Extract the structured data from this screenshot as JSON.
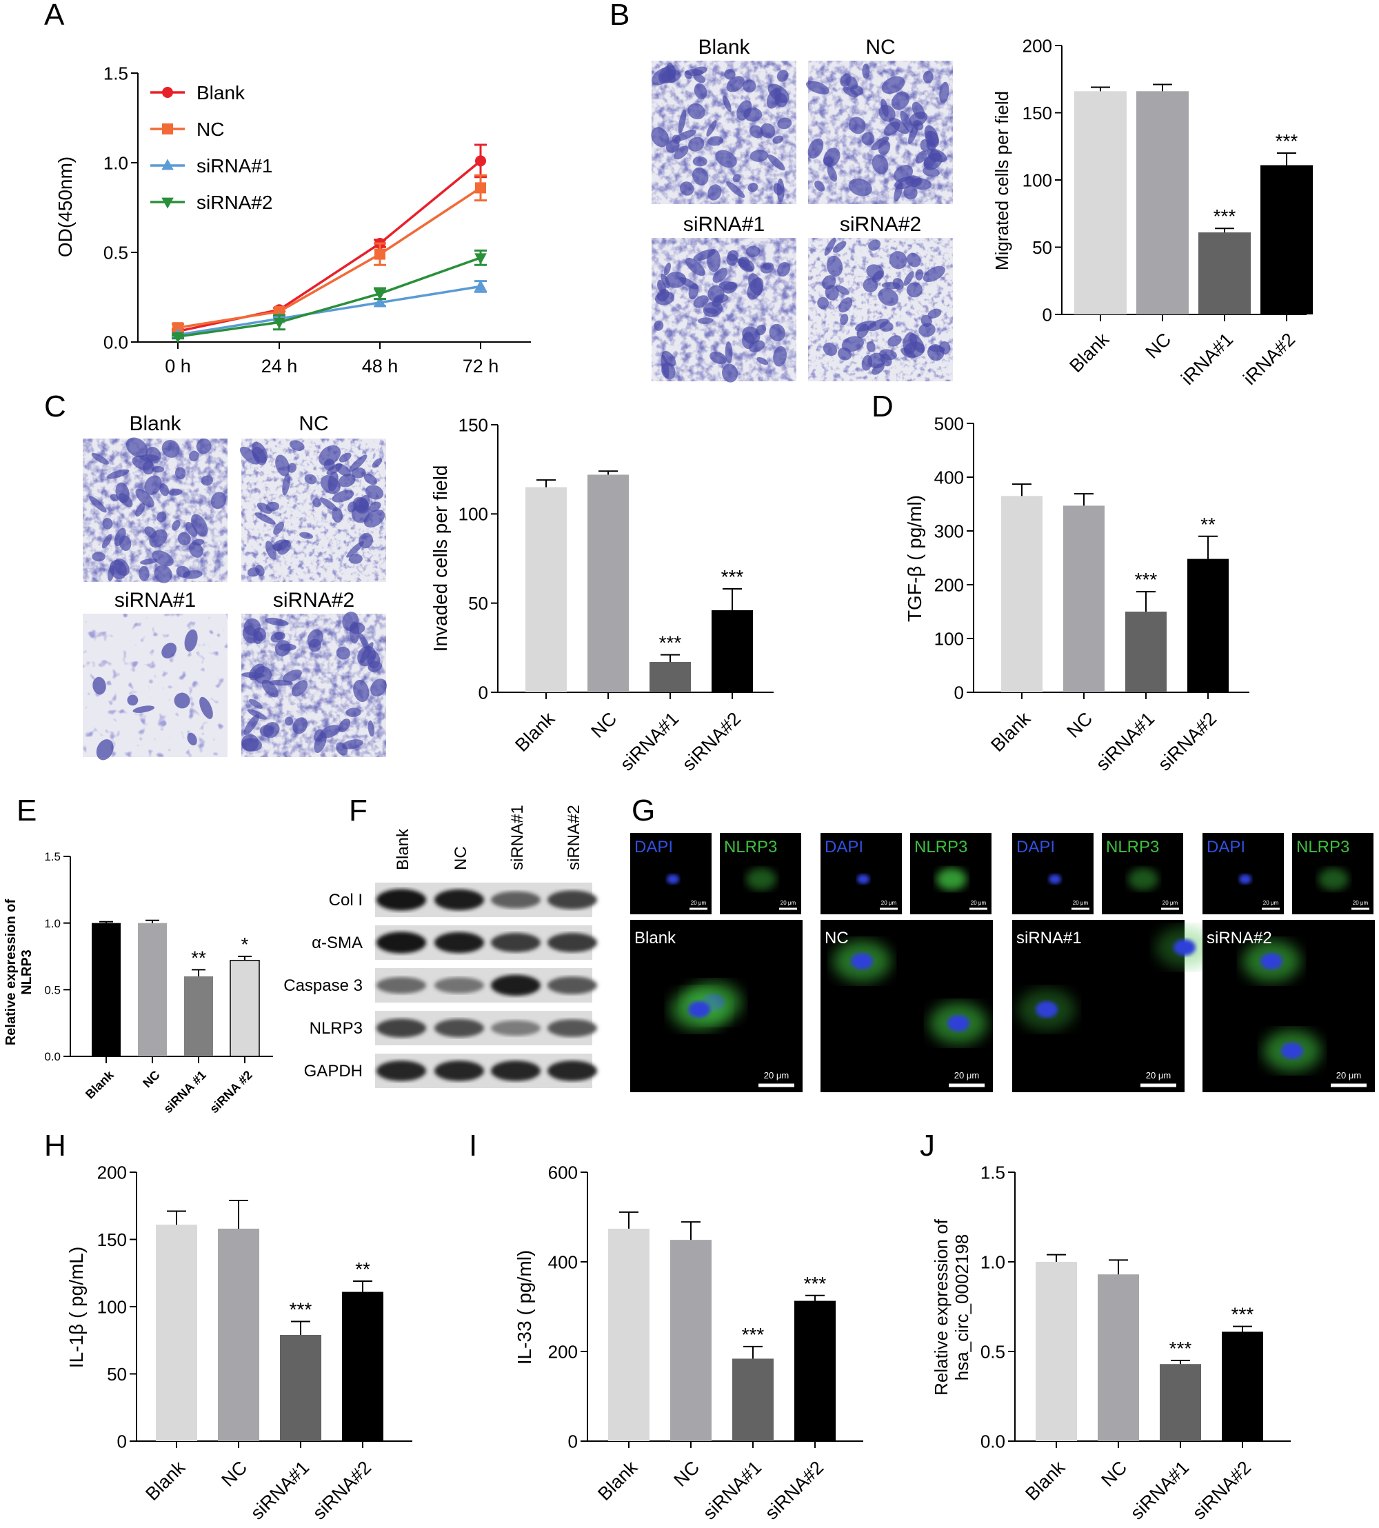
{
  "panels": {
    "A": {
      "letter": "A",
      "chart_data": {
        "type": "line",
        "x": [
          "0 h",
          "24 h",
          "48 h",
          "72 h"
        ],
        "ylabel": "OD(450nm)",
        "ylim": [
          0,
          1.5
        ],
        "yticks": [
          "0.0",
          "0.5",
          "1.0",
          "1.5"
        ],
        "legend_position": "top-left",
        "series": [
          {
            "name": "Blank",
            "values": [
              0.06,
              0.18,
              0.55,
              1.01
            ],
            "errors": [
              0.01,
              0.01,
              0.02,
              0.09
            ],
            "color": "#e8202a",
            "marker": "circle"
          },
          {
            "name": "NC",
            "values": [
              0.08,
              0.17,
              0.49,
              0.86
            ],
            "errors": [
              0.02,
              0.02,
              0.06,
              0.07
            ],
            "color": "#f26a36",
            "marker": "square"
          },
          {
            "name": "siRNA#1",
            "values": [
              0.04,
              0.13,
              0.22,
              0.31
            ],
            "errors": [
              0.01,
              0.01,
              0.02,
              0.03
            ],
            "color": "#5b9bd5",
            "marker": "triangle-up"
          },
          {
            "name": "siRNA#2",
            "values": [
              0.03,
              0.11,
              0.27,
              0.47
            ],
            "errors": [
              0.01,
              0.04,
              0.03,
              0.04
            ],
            "color": "#2a8f3b",
            "marker": "triangle-down"
          }
        ]
      }
    },
    "B": {
      "letter": "B",
      "images": [
        "Blank",
        "NC",
        "siRNA#1",
        "siRNA#2"
      ],
      "chart_data": {
        "type": "bar",
        "categories": [
          "Blank",
          "NC",
          "siRNA#1",
          "siRNA#2"
        ],
        "category_labels_visible": [
          "Blank",
          "NC",
          "iRNA#1",
          "iRNA#2"
        ],
        "values": [
          166,
          166,
          61,
          111
        ],
        "errors": [
          3,
          5,
          3,
          9
        ],
        "significance": [
          "",
          "",
          "***",
          "***"
        ],
        "ylabel": "Migrated cells per field",
        "ylim": [
          0,
          200
        ],
        "yticks": [
          "0",
          "50",
          "100",
          "150",
          "200"
        ]
      }
    },
    "C": {
      "letter": "C",
      "images": [
        "Blank",
        "NC",
        "siRNA#1",
        "siRNA#2"
      ],
      "chart_data": {
        "type": "bar",
        "categories": [
          "Blank",
          "NC",
          "siRNA#1",
          "siRNA#2"
        ],
        "values": [
          115,
          122,
          17,
          46
        ],
        "errors": [
          4,
          2,
          4,
          12
        ],
        "significance": [
          "",
          "",
          "***",
          "***"
        ],
        "ylabel": "Invaded cells per field",
        "ylim": [
          0,
          150
        ],
        "yticks": [
          "0",
          "50",
          "100",
          "150"
        ]
      }
    },
    "D": {
      "letter": "D",
      "chart_data": {
        "type": "bar",
        "categories": [
          "Blank",
          "NC",
          "siRNA#1",
          "siRNA#2"
        ],
        "values": [
          365,
          347,
          150,
          248
        ],
        "errors": [
          22,
          22,
          37,
          42
        ],
        "significance": [
          "",
          "",
          "***",
          "**"
        ],
        "ylabel": "TGF-β ( pg/ml)",
        "ylim": [
          0,
          500
        ],
        "yticks": [
          "0",
          "100",
          "200",
          "300",
          "400",
          "500"
        ]
      }
    },
    "E": {
      "letter": "E",
      "chart_data": {
        "type": "bar",
        "categories": [
          "Blank",
          "NC",
          "siRNA #1",
          "siRNA #2"
        ],
        "values": [
          1.0,
          1.0,
          0.6,
          0.72
        ],
        "errors": [
          0.01,
          0.02,
          0.05,
          0.03
        ],
        "significance": [
          "",
          "",
          "**",
          "*"
        ],
        "ylabel": "Relative expression of NLRP3",
        "ylabel_lines": [
          "Relative expression of",
          "NLRP3"
        ],
        "ylim": [
          0,
          1.5
        ],
        "yticks": [
          "0.0",
          "0.5",
          "1.0",
          "1.5"
        ]
      }
    },
    "F": {
      "letter": "F",
      "lanes": [
        "Blank",
        "NC",
        "siRNA#1",
        "siRNA#2"
      ],
      "proteins": [
        {
          "name": "Col I",
          "intensity": [
            0.95,
            0.9,
            0.55,
            0.7
          ]
        },
        {
          "name": "α-SMA",
          "intensity": [
            0.95,
            0.9,
            0.75,
            0.75
          ]
        },
        {
          "name": "Caspase 3",
          "intensity": [
            0.5,
            0.45,
            0.9,
            0.6
          ]
        },
        {
          "name": "NLRP3",
          "intensity": [
            0.7,
            0.65,
            0.4,
            0.6
          ]
        },
        {
          "name": "GAPDH",
          "intensity": [
            0.85,
            0.85,
            0.85,
            0.85
          ]
        }
      ]
    },
    "G": {
      "letter": "G",
      "channel_labels": [
        "DAPI",
        "NLRP3"
      ],
      "groups": [
        "Blank",
        "NC",
        "siRNA#1",
        "siRNA#2"
      ],
      "small_scale": "20 μm",
      "large_scale": "20 μm"
    },
    "H": {
      "letter": "H",
      "chart_data": {
        "type": "bar",
        "categories": [
          "Blank",
          "NC",
          "siRNA#1",
          "siRNA#2"
        ],
        "values": [
          161,
          158,
          79,
          111
        ],
        "errors": [
          10,
          21,
          10,
          8
        ],
        "significance": [
          "",
          "",
          "***",
          "**"
        ],
        "ylabel": "IL-1β ( pg/mL)",
        "ylim": [
          0,
          200
        ],
        "yticks": [
          "0",
          "50",
          "100",
          "150",
          "200"
        ]
      }
    },
    "I": {
      "letter": "I",
      "chart_data": {
        "type": "bar",
        "categories": [
          "Blank",
          "NC",
          "siRNA#1",
          "siRNA#2"
        ],
        "values": [
          474,
          449,
          184,
          313
        ],
        "errors": [
          37,
          40,
          27,
          12
        ],
        "significance": [
          "",
          "",
          "***",
          "***"
        ],
        "ylabel": "IL-33 ( pg/ml)",
        "ylim": [
          0,
          600
        ],
        "yticks": [
          "0",
          "200",
          "400",
          "600"
        ]
      }
    },
    "J": {
      "letter": "J",
      "chart_data": {
        "type": "bar",
        "categories": [
          "Blank",
          "NC",
          "siRNA#1",
          "siRNA#2"
        ],
        "values": [
          1.0,
          0.93,
          0.43,
          0.61
        ],
        "errors": [
          0.04,
          0.08,
          0.02,
          0.03
        ],
        "significance": [
          "",
          "",
          "***",
          "***"
        ],
        "ylabel": "Relative expression of hsa_circ_0002198",
        "ylabel_lines": [
          "Relative expression of",
          "hsa_circ_0002198"
        ],
        "ylim": [
          0,
          1.5
        ],
        "yticks": [
          "0.0",
          "0.5",
          "1.0",
          "1.5"
        ]
      }
    }
  },
  "colors": {
    "bar_fills": [
      "#d9d9d9",
      "#a6a6aa",
      "#636363",
      "#000000"
    ],
    "bar_fills_E": [
      "#000000",
      "#a6a6aa",
      "#7f7f7f",
      "#d9d9d9"
    ],
    "stain": "#4a4aa8",
    "fluor_dapi": "#2f3fd8",
    "fluor_nlrp3": "#3fbf3f"
  }
}
